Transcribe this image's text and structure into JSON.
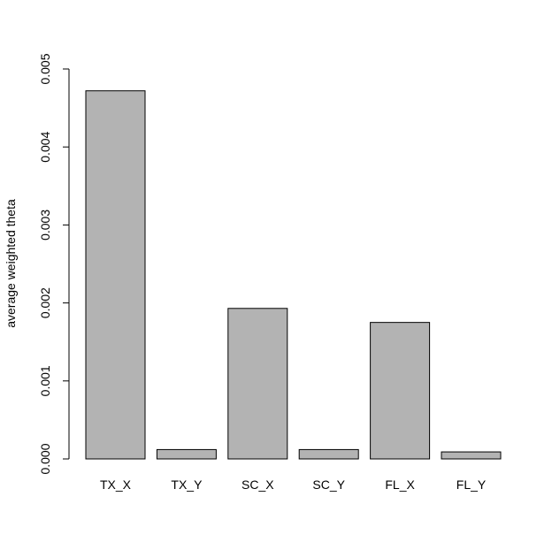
{
  "chart_data": {
    "type": "bar",
    "title": "",
    "xlabel": "",
    "ylabel": "average weighted theta",
    "categories": [
      "TX_X",
      "TX_Y",
      "SC_X",
      "SC_Y",
      "FL_X",
      "FL_Y"
    ],
    "values": [
      0.00472,
      0.00012,
      0.00193,
      0.00012,
      0.00175,
      9e-05
    ],
    "ylim": [
      0,
      0.005
    ],
    "yticks": [
      0,
      0.001,
      0.002,
      0.003,
      0.004,
      0.005
    ],
    "ytick_labels": [
      "0.000",
      "0.001",
      "0.002",
      "0.003",
      "0.004",
      "0.005"
    ],
    "grid": false,
    "legend": "none",
    "colors": {
      "bar_fill": "#b3b3b3",
      "bar_stroke": "#000000",
      "axis": "#000000"
    }
  }
}
